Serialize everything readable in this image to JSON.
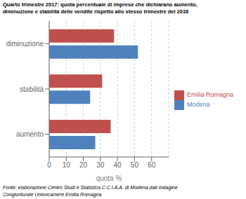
{
  "chart_data": {
    "type": "bar",
    "orientation": "horizontal",
    "title": [
      "Quarto trimestre 2017: quota percentuale di imprese che dichiarano aumento,",
      "diminuzione e stabilità delle vendite rispetto allo stesso trimestre del 2016"
    ],
    "categories": [
      "aumento",
      "stabilità",
      "diminuzione"
    ],
    "series": [
      {
        "name": "Emilia Romagna",
        "color": "#C0504D",
        "values": [
          36,
          31,
          38
        ]
      },
      {
        "name": "Modena",
        "color": "#4F81BD",
        "values": [
          27,
          24,
          52
        ]
      }
    ],
    "xlabel": "quota %",
    "xlim": [
      0,
      70
    ],
    "xticks": [
      0,
      10,
      20,
      30,
      40,
      50,
      60
    ],
    "grid": true,
    "legend": "right",
    "annotations": [
      "Fonte: elaborazione Centro Studi e Statistica C.C.I.A.A. di Modena dati Indagine",
      "Congiunturale Unioncamere Emilia Romagna"
    ]
  }
}
